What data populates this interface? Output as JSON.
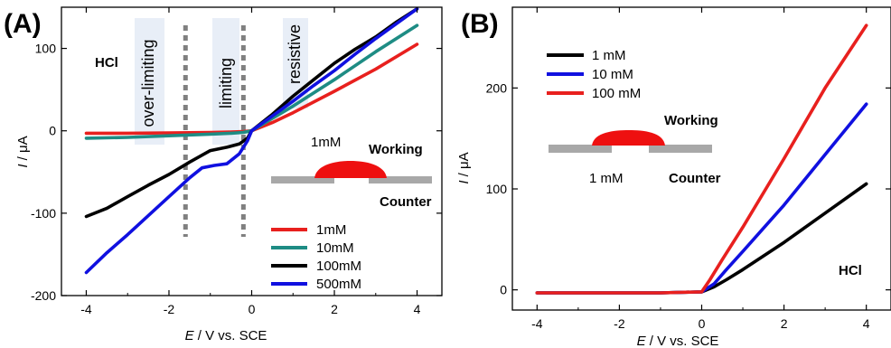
{
  "chart_data": [
    {
      "panel_label": "(A)",
      "type": "line",
      "xlabel_var": "E",
      "xlabel_unit": "/ V vs. SCE",
      "ylabel_var": "I",
      "ylabel_unit": " / μA",
      "xlim": [
        -4.6,
        4.6
      ],
      "ylim": [
        -200,
        150
      ],
      "xticks": [
        -4,
        -2,
        0,
        2,
        4
      ],
      "yticks": [
        -200,
        -100,
        0,
        100
      ],
      "electrolyte_label": "HCl",
      "regions": [
        {
          "label": "over-limiting",
          "x": -2.4
        },
        {
          "label": "limiting",
          "x": -0.75
        },
        {
          "label": "resistive",
          "x": 1.0
        }
      ],
      "boundaries": [
        -1.6,
        -0.2
      ],
      "schematic": {
        "concentration": "1mM",
        "working": "Working",
        "counter": "Counter"
      },
      "legend": {
        "position": "bottom-right"
      },
      "series": [
        {
          "name": "1mM",
          "color": "#e8201e",
          "x": [
            -4,
            -3,
            -2,
            -1,
            -0.5,
            -0.2,
            0,
            0.5,
            1,
            2,
            3,
            4
          ],
          "y": [
            -3,
            -3,
            -2.5,
            -2,
            -1.5,
            -1,
            0,
            10,
            22,
            48,
            75,
            105
          ]
        },
        {
          "name": "10mM",
          "color": "#1e8c84",
          "x": [
            -4,
            -3,
            -2,
            -1,
            -0.5,
            -0.2,
            0,
            0.5,
            1,
            2,
            3,
            4
          ],
          "y": [
            -9,
            -8,
            -6,
            -4,
            -3,
            -2,
            0,
            15,
            30,
            62,
            96,
            128
          ]
        },
        {
          "name": "100mM",
          "color": "#000000",
          "x": [
            -4,
            -3.5,
            -3,
            -2.5,
            -2,
            -1.5,
            -1,
            -0.6,
            -0.3,
            -0.1,
            0,
            0.5,
            1,
            1.5,
            2,
            2.5,
            3,
            3.5,
            4
          ],
          "y": [
            -104,
            -94,
            -80,
            -66,
            -53,
            -38,
            -24,
            -20,
            -16,
            -9,
            0,
            20,
            42,
            62,
            82,
            99,
            114,
            132,
            148
          ]
        },
        {
          "name": "500mM",
          "color": "#1010e0",
          "x": [
            -4,
            -3.5,
            -3,
            -2.5,
            -2,
            -1.5,
            -1.2,
            -0.9,
            -0.6,
            -0.3,
            -0.1,
            0,
            0.5,
            1,
            1.5,
            2,
            2.5,
            3,
            3.5,
            4
          ],
          "y": [
            -172,
            -148,
            -126,
            -103,
            -80,
            -57,
            -45,
            -42,
            -40,
            -28,
            -12,
            0,
            18,
            36,
            55,
            73,
            93,
            112,
            130,
            148
          ]
        }
      ]
    },
    {
      "panel_label": "(B)",
      "type": "line",
      "xlabel_var": "E",
      "xlabel_unit": "/ V vs. SCE",
      "ylabel_var": "I",
      "ylabel_unit": " / μA",
      "xlim": [
        -4.6,
        4.6
      ],
      "ylim": [
        -20,
        280
      ],
      "xticks": [
        -4,
        -2,
        0,
        2,
        4
      ],
      "yticks": [
        0,
        100,
        200
      ],
      "electrolyte_label": "HCl",
      "schematic": {
        "concentration": "1 mM",
        "working": "Working",
        "counter": "Counter"
      },
      "legend": {
        "position": "top-left"
      },
      "series": [
        {
          "name": "1 mM",
          "color": "#000000",
          "x": [
            -4,
            -2,
            -1,
            0,
            0.3,
            0.6,
            1,
            2,
            3,
            4
          ],
          "y": [
            -3,
            -3,
            -3,
            -2,
            3,
            10,
            20,
            47,
            76,
            105
          ]
        },
        {
          "name": "10 mM",
          "color": "#1010e0",
          "x": [
            -4,
            -2,
            -1,
            0,
            0.3,
            0.6,
            1,
            2,
            3,
            4
          ],
          "y": [
            -3,
            -3,
            -3,
            -2,
            6,
            20,
            38,
            84,
            134,
            184
          ]
        },
        {
          "name": "100 mM",
          "color": "#e8201e",
          "x": [
            -4,
            -2,
            -1,
            0,
            0.2,
            0.5,
            1,
            2,
            3,
            4
          ],
          "y": [
            -3,
            -3,
            -3,
            -2,
            10,
            30,
            62,
            130,
            200,
            262
          ]
        }
      ]
    }
  ]
}
